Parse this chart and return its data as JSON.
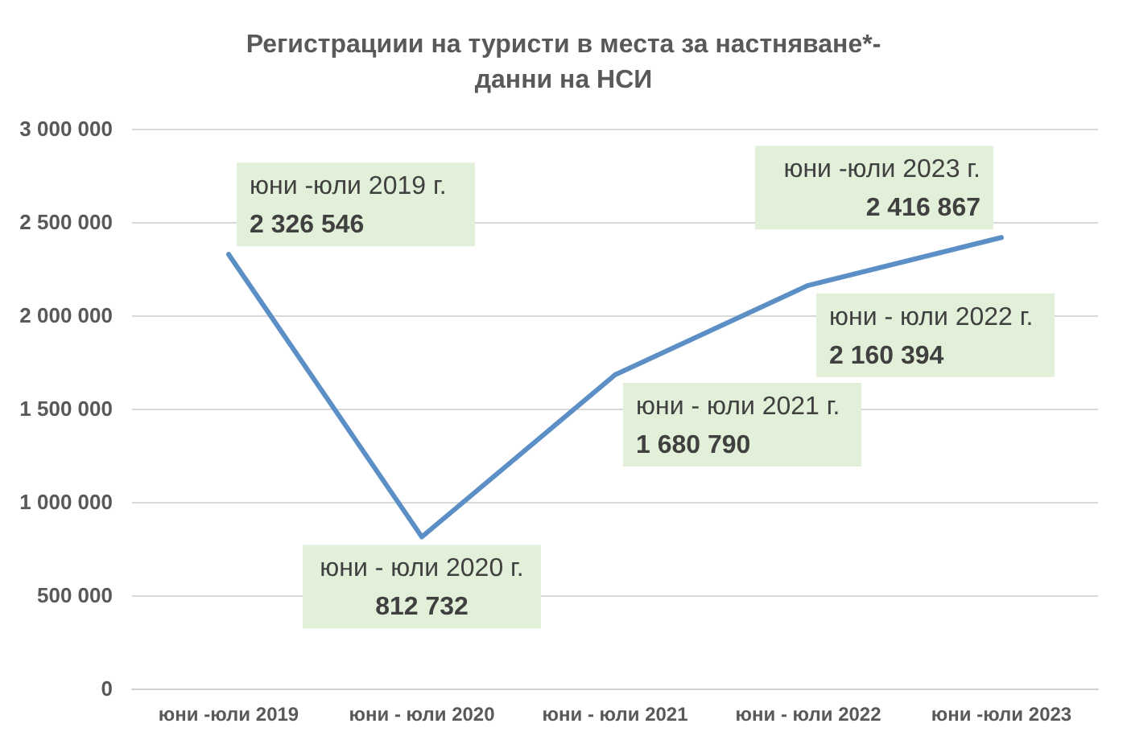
{
  "chart_data": {
    "type": "line",
    "title": "Регистрациии на туристи в места за настняване*-\nданни на НСИ",
    "categories": [
      "юни -юли 2019",
      "юни - юли 2020",
      "юни - юли 2021",
      "юни - юли 2022",
      "юни -юли 2023"
    ],
    "values": [
      2326546,
      812732,
      1680790,
      2160394,
      2416867
    ],
    "color": "#5b8fc6",
    "value_labels": [
      "2 326 546",
      "812 732",
      "1 680 790",
      "2 160 394",
      "2 416 867"
    ],
    "annotations": [
      {
        "text": "юни -юли 2019 г.",
        "x": "юни -юли 2019",
        "y": 2326546
      },
      {
        "text": "юни - юли 2020 г.",
        "x": "юни - юли 2020",
        "y": 812732
      },
      {
        "text": "юни - юли 2021 г.",
        "x": "юни - юли 2021",
        "y": 1680790
      },
      {
        "text": "юни - юли 2022 г.",
        "x": "юни - юли 2022",
        "y": 2160394
      },
      {
        "text": "юни -юли 2023 г.",
        "x": "юни -юли 2023",
        "y": 2416867
      }
    ],
    "ylim": [
      0,
      3000000
    ],
    "yticks": [
      {
        "value": 0,
        "label": "0"
      },
      {
        "value": 500000,
        "label": "500 000"
      },
      {
        "value": 1000000,
        "label": "1 000 000"
      },
      {
        "value": 1500000,
        "label": "1 500 000"
      },
      {
        "value": 2000000,
        "label": "2 000 000"
      },
      {
        "value": 2500000,
        "label": "2 500 000"
      },
      {
        "value": 3000000,
        "label": "3 000 000"
      }
    ],
    "grid": true,
    "marker": "none",
    "line_style": "solid"
  }
}
